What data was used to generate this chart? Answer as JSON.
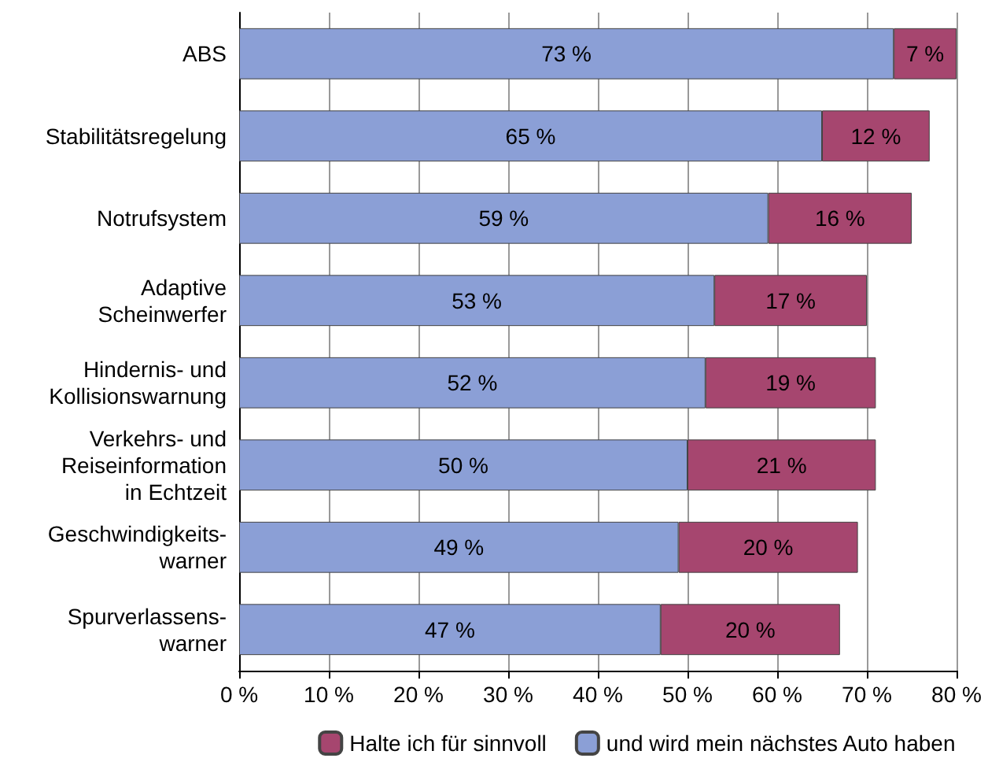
{
  "chart_data": {
    "type": "bar",
    "orientation": "horizontal",
    "stacked": true,
    "categories": [
      "ABS",
      "Stabilitätsregelung",
      "Notrufsystem",
      "Adaptive\nScheinwerfer",
      "Hindernis- und\nKollisionswarnung",
      "Verkehrs- und\nReiseinformation\nin Echtzeit",
      "Geschwindigkeits-\nwarner",
      "Spurverlassens-\nwarner"
    ],
    "series": [
      {
        "name": "und wird mein nächstes Auto haben",
        "color": "#8b9fd6",
        "values": [
          73,
          65,
          59,
          53,
          52,
          50,
          49,
          47
        ],
        "value_labels": [
          "73 %",
          "65 %",
          "59 %",
          "53 %",
          "52 %",
          "50 %",
          "49 %",
          "47 %"
        ]
      },
      {
        "name": "Halte ich für sinnvoll",
        "color": "#a6466f",
        "values": [
          7,
          12,
          16,
          17,
          19,
          21,
          20,
          20
        ],
        "value_labels": [
          "7 %",
          "12 %",
          "16 %",
          "17 %",
          "19 %",
          "21 %",
          "20 %",
          "20 %"
        ]
      }
    ],
    "xlim": [
      0,
      80
    ],
    "xticks": [
      {
        "value": 0,
        "label": "0 %"
      },
      {
        "value": 10,
        "label": "10 %"
      },
      {
        "value": 20,
        "label": "20 %"
      },
      {
        "value": 30,
        "label": "30 %"
      },
      {
        "value": 40,
        "label": "40 %"
      },
      {
        "value": 50,
        "label": "50 %"
      },
      {
        "value": 60,
        "label": "60 %"
      },
      {
        "value": 70,
        "label": "70 %"
      },
      {
        "value": 80,
        "label": "80 %"
      }
    ],
    "grid": "x",
    "legend": "bottom"
  }
}
